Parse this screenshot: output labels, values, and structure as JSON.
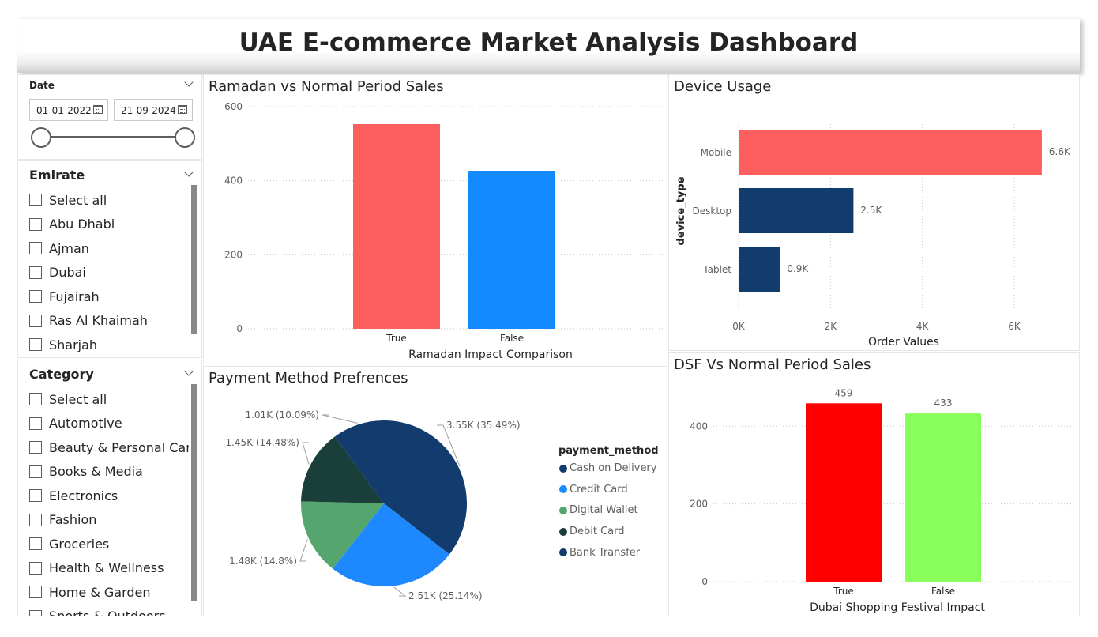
{
  "header": {
    "title": "UAE E-commerce Market Analysis Dashboard"
  },
  "date_slicer": {
    "label": "Date",
    "start": "01-01-2022",
    "end": "21-09-2024",
    "range_position": [
      0,
      1
    ]
  },
  "emirate_slicer": {
    "title": "Emirate",
    "items": [
      "Select all",
      "Abu Dhabi",
      "Ajman",
      "Dubai",
      "Fujairah",
      "Ras Al Khaimah",
      "Sharjah"
    ]
  },
  "category_slicer": {
    "title": "Category",
    "items": [
      "Select all",
      "Automotive",
      "Beauty & Personal Care",
      "Books & Media",
      "Electronics",
      "Fashion",
      "Groceries",
      "Health & Wellness",
      "Home & Garden",
      "Sports & Outdoors"
    ]
  },
  "colors": {
    "ramadan_true": "#FD5E5E",
    "ramadan_false": "#138BFF",
    "device_mobile": "#FD5E5E",
    "device_other": "#123C6D",
    "dsf_true": "#FF0000",
    "dsf_false": "#88FF5A",
    "pie": [
      "#123C6D",
      "#1E88FF",
      "#55A56E",
      "#1A3E3A",
      "#123C6D"
    ]
  },
  "chart_data": [
    {
      "id": "ramadan",
      "type": "bar",
      "title": "Ramadan vs Normal Period Sales",
      "categories": [
        "True",
        "False"
      ],
      "values": [
        553,
        427
      ],
      "xlabel": "Ramadan Impact Comparison",
      "ylabel": "",
      "ylim": [
        0,
        600
      ],
      "yticks": [
        "0",
        "200",
        "400",
        "600"
      ],
      "grid": true
    },
    {
      "id": "device",
      "type": "bar",
      "orientation": "horizontal",
      "title": "Device Usage",
      "categories": [
        "Mobile",
        "Desktop",
        "Tablet"
      ],
      "values": [
        6600,
        2500,
        900
      ],
      "data_labels": [
        "6.6K",
        "2.5K",
        "0.9K"
      ],
      "xlabel": "Order Values",
      "ylabel": "device_type",
      "xlim": [
        0,
        6600
      ],
      "xticks": [
        "0K",
        "2K",
        "4K",
        "6K"
      ],
      "grid": true
    },
    {
      "id": "payment",
      "type": "pie",
      "title": "Payment Method Prefrences",
      "legend_title": "payment_method",
      "legend": [
        "Cash on Delivery",
        "Credit Card",
        "Digital Wallet",
        "Debit Card",
        "Bank Transfer"
      ],
      "values": [
        3550,
        2510,
        1480,
        1450,
        1010
      ],
      "data_labels": [
        "3.55K (35.49%)",
        "2.51K (25.14%)",
        "1.48K (14.8%)",
        "1.45K (14.48%)",
        "1.01K (10.09%)"
      ],
      "legend_position": "right"
    },
    {
      "id": "dsf",
      "type": "bar",
      "title": "DSF Vs Normal Period Sales",
      "categories": [
        "True",
        "False"
      ],
      "values": [
        459,
        433
      ],
      "data_labels": [
        "459",
        "433"
      ],
      "xlabel": "Dubai Shopping Festival Impact",
      "ylabel": "",
      "ylim": [
        0,
        480
      ],
      "yticks": [
        "0",
        "200",
        "400"
      ],
      "grid": true
    }
  ]
}
